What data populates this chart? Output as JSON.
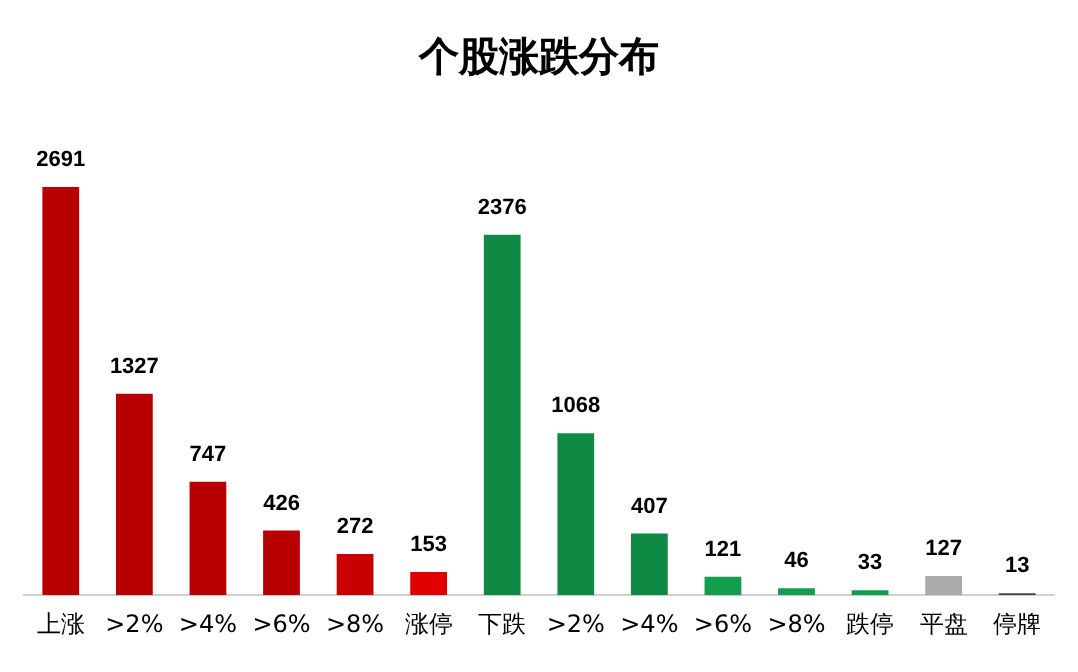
{
  "chart_data": {
    "type": "bar",
    "title": "个股涨跌分布",
    "categories": [
      "上涨",
      ">2%",
      ">4%",
      ">6%",
      ">8%",
      "涨停",
      "下跌",
      ">2%",
      ">4%",
      ">6%",
      ">8%",
      "跌停",
      "平盘",
      "停牌"
    ],
    "values": [
      2691,
      1327,
      747,
      426,
      272,
      153,
      2376,
      1068,
      407,
      121,
      46,
      33,
      127,
      13
    ],
    "colors": [
      "#b80000",
      "#b80000",
      "#b80000",
      "#b80000",
      "#c80000",
      "#e00000",
      "#0f8a45",
      "#0f8a45",
      "#0f8a45",
      "#129e4e",
      "#129e4e",
      "#129e4e",
      "#aaaaaa",
      "#444444"
    ],
    "data_labels": true,
    "tick_labels": "x",
    "grid": false,
    "legend": false
  }
}
